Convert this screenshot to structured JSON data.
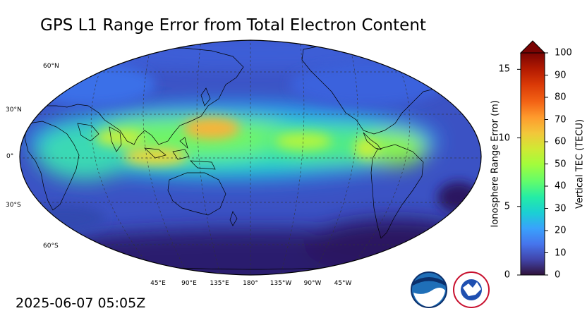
{
  "title": "GPS L1 Range Error from Total Electron Content",
  "timestamp": "2025-06-07 05:05Z",
  "map": {
    "projection": "robinson",
    "central_longitude": 180,
    "lat_labels": [
      "60°N",
      "30°N",
      "0°",
      "30°S",
      "60°S"
    ],
    "lon_labels": [
      "45°E",
      "90°E",
      "135°E",
      "180°",
      "135°W",
      "90°W",
      "45°W"
    ]
  },
  "colorbar": {
    "left_label": "Ionosphere Range Error (m)",
    "right_label": "Vertical TEC (TECU)",
    "left_ticks": [
      "0",
      "5",
      "10",
      "15"
    ],
    "right_ticks": [
      "0",
      "10",
      "20",
      "30",
      "40",
      "50",
      "60",
      "70",
      "80",
      "90",
      "100"
    ],
    "tec_range": [
      0,
      100
    ],
    "range_error_max": 16.2,
    "extend": "max"
  },
  "logos": {
    "noaa": "NOAA",
    "nws": "NATIONAL WEATHER SERVICE"
  },
  "colors": {
    "low": "#30123b",
    "mid": "#1ae4b6",
    "high": "#7a0403"
  }
}
